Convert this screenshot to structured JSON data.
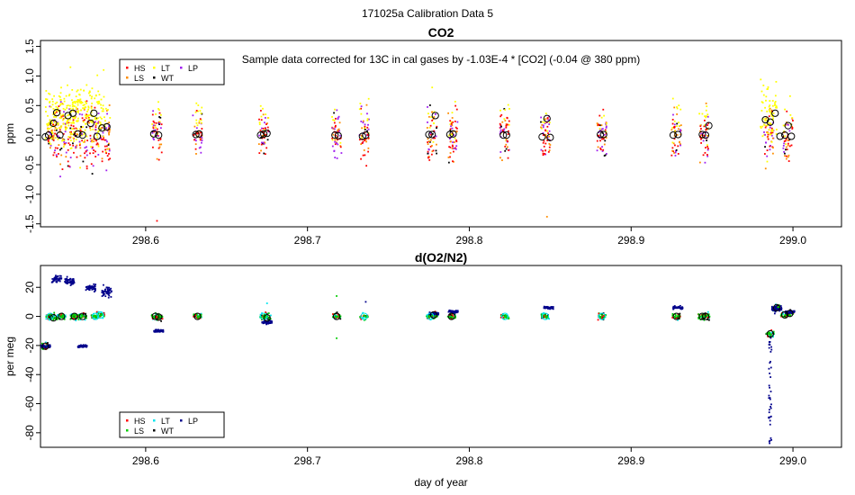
{
  "figure_title": "171025a   Calibration Data 5",
  "colors": {
    "HS": "#ff0000",
    "LS": "#ff8c00",
    "LT": "#ffff00",
    "WT": "#000000",
    "LP": "#a020f0",
    "HS2": "#ff0000",
    "LS2": "#00cc00",
    "LT2": "#00e5ee",
    "WT2": "#000000",
    "LP2": "#00008b"
  },
  "chart_data": [
    {
      "type": "scatter",
      "title": "CO2",
      "annotation": "Sample data corrected for 13C in cal gases by -1.03E-4 * [CO2] (-0.04 @ 380 ppm)",
      "xlabel": "",
      "ylabel": "ppm",
      "xlim": [
        298.535,
        299.03
      ],
      "ylim": [
        -1.55,
        1.6
      ],
      "xticks": [
        298.6,
        298.7,
        298.8,
        298.9,
        299.0
      ],
      "xtick_labels": [
        "298.6",
        "298.7",
        "298.8",
        "298.9",
        "299.0"
      ],
      "yticks": [
        -1.5,
        -1.0,
        -0.5,
        0.0,
        0.5,
        1.0,
        1.5
      ],
      "ytick_labels": [
        "-1.5",
        "-1.0",
        "-0.5",
        "0.0",
        "0.5",
        "1.0",
        "1.5"
      ],
      "legend": {
        "placement": "top-left",
        "entries": [
          "HS",
          "LS",
          "LT",
          "WT",
          "LP"
        ]
      },
      "series": [
        {
          "name": "HS",
          "color": "#ff0000"
        },
        {
          "name": "LS",
          "color": "#ff8c00"
        },
        {
          "name": "LT",
          "color": "#ffff00"
        },
        {
          "name": "WT",
          "color": "#000000"
        },
        {
          "name": "LP",
          "color": "#a020f0"
        }
      ],
      "clusters": [
        {
          "x": 298.542,
          "spread": 0.7
        },
        {
          "x": 298.548,
          "spread": 1.0
        },
        {
          "x": 298.555,
          "spread": 1.1
        },
        {
          "x": 298.562,
          "spread": 1.0
        },
        {
          "x": 298.568,
          "spread": 0.9
        },
        {
          "x": 298.575,
          "spread": 1.0
        },
        {
          "x": 298.607,
          "spread": 0.7
        },
        {
          "x": 298.632,
          "spread": 0.6
        },
        {
          "x": 298.673,
          "spread": 0.7
        },
        {
          "x": 298.718,
          "spread": 0.8
        },
        {
          "x": 298.735,
          "spread": 0.8
        },
        {
          "x": 298.777,
          "spread": 0.8
        },
        {
          "x": 298.79,
          "spread": 0.8
        },
        {
          "x": 298.822,
          "spread": 0.7
        },
        {
          "x": 298.847,
          "spread": 0.7
        },
        {
          "x": 298.882,
          "spread": 0.6
        },
        {
          "x": 298.928,
          "spread": 0.7
        },
        {
          "x": 298.945,
          "spread": 0.7
        },
        {
          "x": 298.985,
          "spread": 0.9
        },
        {
          "x": 298.997,
          "spread": 0.7
        }
      ],
      "means": [
        {
          "x": 298.538,
          "y": -0.03
        },
        {
          "x": 298.54,
          "y": 0.0
        },
        {
          "x": 298.543,
          "y": 0.2
        },
        {
          "x": 298.545,
          "y": 0.38
        },
        {
          "x": 298.547,
          "y": 0.0
        },
        {
          "x": 298.552,
          "y": 0.33
        },
        {
          "x": 298.555,
          "y": 0.37
        },
        {
          "x": 298.558,
          "y": 0.02
        },
        {
          "x": 298.561,
          "y": 0.0
        },
        {
          "x": 298.566,
          "y": 0.2
        },
        {
          "x": 298.568,
          "y": 0.37
        },
        {
          "x": 298.57,
          "y": -0.02
        },
        {
          "x": 298.573,
          "y": 0.12
        },
        {
          "x": 298.576,
          "y": 0.14
        },
        {
          "x": 298.605,
          "y": 0.02
        },
        {
          "x": 298.608,
          "y": 0.0
        },
        {
          "x": 298.631,
          "y": 0.01
        },
        {
          "x": 298.633,
          "y": 0.02
        },
        {
          "x": 298.671,
          "y": 0.0
        },
        {
          "x": 298.673,
          "y": 0.02
        },
        {
          "x": 298.675,
          "y": 0.03
        },
        {
          "x": 298.717,
          "y": 0.0
        },
        {
          "x": 298.719,
          "y": -0.01
        },
        {
          "x": 298.734,
          "y": -0.02
        },
        {
          "x": 298.736,
          "y": 0.0
        },
        {
          "x": 298.775,
          "y": 0.01
        },
        {
          "x": 298.777,
          "y": 0.01
        },
        {
          "x": 298.779,
          "y": 0.33
        },
        {
          "x": 298.788,
          "y": 0.01
        },
        {
          "x": 298.79,
          "y": 0.02
        },
        {
          "x": 298.821,
          "y": 0.0
        },
        {
          "x": 298.823,
          "y": 0.0
        },
        {
          "x": 298.845,
          "y": -0.03
        },
        {
          "x": 298.848,
          "y": 0.28
        },
        {
          "x": 298.85,
          "y": -0.04
        },
        {
          "x": 298.881,
          "y": 0.01
        },
        {
          "x": 298.883,
          "y": 0.01
        },
        {
          "x": 298.926,
          "y": 0.0
        },
        {
          "x": 298.929,
          "y": 0.01
        },
        {
          "x": 298.944,
          "y": 0.01
        },
        {
          "x": 298.946,
          "y": 0.0
        },
        {
          "x": 298.948,
          "y": 0.16
        },
        {
          "x": 298.983,
          "y": 0.26
        },
        {
          "x": 298.986,
          "y": 0.22
        },
        {
          "x": 298.989,
          "y": 0.37
        },
        {
          "x": 298.992,
          "y": -0.02
        },
        {
          "x": 298.995,
          "y": 0.0
        },
        {
          "x": 298.997,
          "y": 0.16
        },
        {
          "x": 298.999,
          "y": -0.02
        }
      ]
    },
    {
      "type": "scatter",
      "title": "d(O2/N2)",
      "xlabel": "day of year",
      "ylabel": "per meg",
      "xlim": [
        298.535,
        299.03
      ],
      "ylim": [
        -90,
        35
      ],
      "xticks": [
        298.6,
        298.7,
        298.8,
        298.9,
        299.0
      ],
      "xtick_labels": [
        "298.6",
        "298.7",
        "298.8",
        "298.9",
        "299.0"
      ],
      "yticks": [
        -80,
        -60,
        -40,
        -20,
        0,
        20
      ],
      "ytick_labels": [
        "-80",
        "-60",
        "-40",
        "-20",
        "0",
        "20"
      ],
      "legend": {
        "placement": "bottom-left",
        "entries": [
          "HS",
          "LS",
          "LT",
          "WT",
          "LP"
        ]
      },
      "series": [
        {
          "name": "HS",
          "color": "#ff0000"
        },
        {
          "name": "LS",
          "color": "#00cc00"
        },
        {
          "name": "LT",
          "color": "#00e5ee"
        },
        {
          "name": "WT",
          "color": "#000000"
        },
        {
          "name": "LP",
          "color": "#00008b"
        }
      ],
      "blue_clusters": [
        {
          "x": 298.538,
          "y": -20.5,
          "spread": 1.5
        },
        {
          "x": 298.545,
          "y": 26,
          "spread": 4
        },
        {
          "x": 298.553,
          "y": 24,
          "spread": 4
        },
        {
          "x": 298.561,
          "y": -20.5,
          "spread": 1.5
        },
        {
          "x": 298.566,
          "y": 20,
          "spread": 4
        },
        {
          "x": 298.576,
          "y": 17,
          "spread": 6
        },
        {
          "x": 298.608,
          "y": -10,
          "spread": 1.5
        },
        {
          "x": 298.675,
          "y": -4,
          "spread": 2
        },
        {
          "x": 298.778,
          "y": 2,
          "spread": 1.5
        },
        {
          "x": 298.79,
          "y": 3.5,
          "spread": 1.5
        },
        {
          "x": 298.849,
          "y": 6,
          "spread": 1.5
        },
        {
          "x": 298.929,
          "y": 6,
          "spread": 1.5
        },
        {
          "x": 298.99,
          "y": 5,
          "spread": 4
        },
        {
          "x": 298.998,
          "y": 3,
          "spread": 1.5
        }
      ],
      "means": [
        {
          "x": 298.538,
          "y": -20.5
        },
        {
          "x": 298.541,
          "y": 0
        },
        {
          "x": 298.543,
          "y": -1
        },
        {
          "x": 298.548,
          "y": 0
        },
        {
          "x": 298.556,
          "y": 0
        },
        {
          "x": 298.561,
          "y": 0
        },
        {
          "x": 298.569,
          "y": 0
        },
        {
          "x": 298.572,
          "y": 1
        },
        {
          "x": 298.606,
          "y": 0
        },
        {
          "x": 298.608,
          "y": -0.5
        },
        {
          "x": 298.632,
          "y": 0
        },
        {
          "x": 298.673,
          "y": 0
        },
        {
          "x": 298.675,
          "y": -1
        },
        {
          "x": 298.718,
          "y": 0
        },
        {
          "x": 298.735,
          "y": 0
        },
        {
          "x": 298.776,
          "y": 0
        },
        {
          "x": 298.778,
          "y": 1
        },
        {
          "x": 298.789,
          "y": 0
        },
        {
          "x": 298.822,
          "y": 0
        },
        {
          "x": 298.847,
          "y": 0
        },
        {
          "x": 298.882,
          "y": 0
        },
        {
          "x": 298.928,
          "y": 0
        },
        {
          "x": 298.944,
          "y": 0
        },
        {
          "x": 298.946,
          "y": 0
        },
        {
          "x": 298.986,
          "y": -12
        },
        {
          "x": 298.99,
          "y": 6
        },
        {
          "x": 298.995,
          "y": 1
        },
        {
          "x": 298.998,
          "y": 2
        }
      ],
      "outlier_trail": {
        "x": 298.986,
        "y_min": -88,
        "y_max": -10
      }
    }
  ]
}
